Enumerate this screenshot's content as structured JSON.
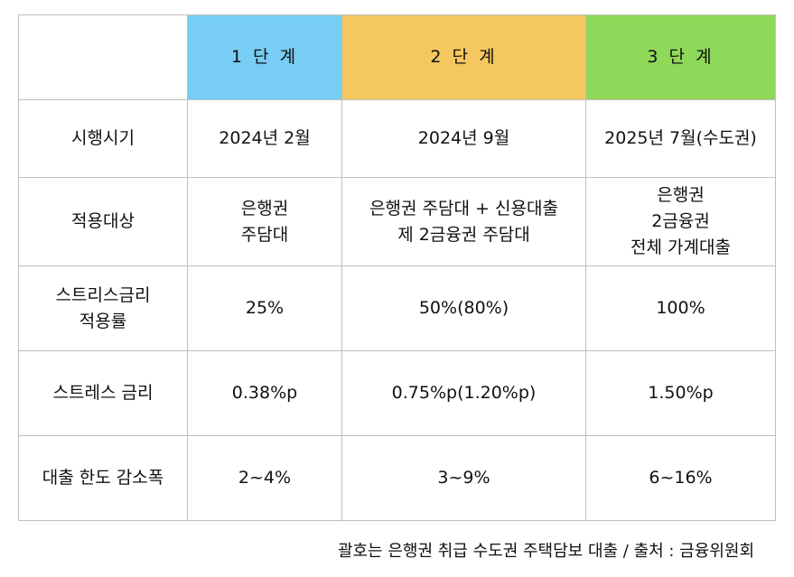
{
  "table": {
    "stages": [
      "1 단 계",
      "2 단 계",
      "3 단 계"
    ],
    "colors": {
      "stage_1": "#78cdf5",
      "stage_2": "#f5c85f",
      "stage_3": "#8fd95a",
      "border": "#bfbfbf"
    },
    "rows": [
      {
        "label": [
          "시행시기"
        ],
        "cells": [
          [
            "2024년 2월"
          ],
          [
            "2024년 9월"
          ],
          [
            "2025년 7월(수도권)"
          ]
        ]
      },
      {
        "label": [
          "적용대상"
        ],
        "cells": [
          [
            "은행권",
            "주담대"
          ],
          [
            "은행권 주담대 + 신용대출",
            "제 2금융권 주담대"
          ],
          [
            "은행권",
            "2금융권",
            "전체 가계대출"
          ]
        ]
      },
      {
        "label": [
          "스트리스금리",
          "적용률"
        ],
        "cells": [
          [
            "25%"
          ],
          [
            "50%(80%)"
          ],
          [
            "100%"
          ]
        ]
      },
      {
        "label": [
          "스트레스 금리"
        ],
        "cells": [
          [
            "0.38%p"
          ],
          [
            "0.75%p(1.20%p)"
          ],
          [
            "1.50%p"
          ]
        ]
      },
      {
        "label": [
          "대출 한도 감소폭"
        ],
        "cells": [
          [
            "2~4%"
          ],
          [
            "3~9%"
          ],
          [
            "6~16%"
          ]
        ]
      }
    ]
  },
  "footnote": "괄호는 은행권 취급 수도권 주택담보 대출 / 출처 : 금융위원회"
}
